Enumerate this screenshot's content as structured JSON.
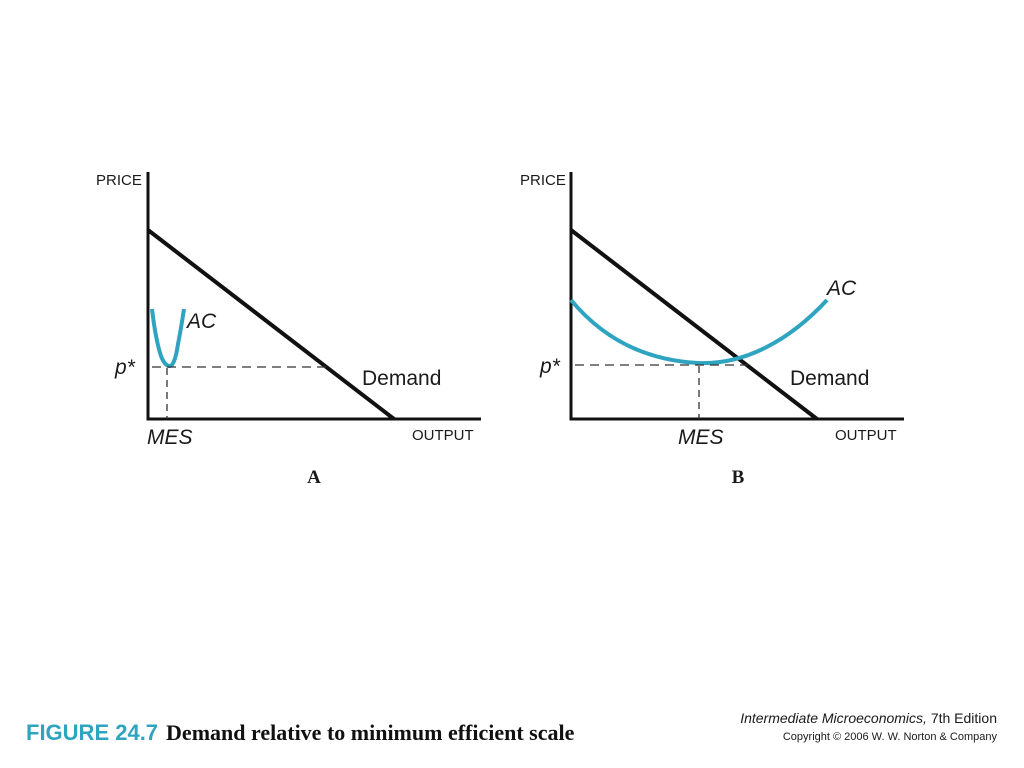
{
  "panels": [
    {
      "id": "A",
      "panel_label": "A",
      "y_axis_label": "PRICE",
      "x_axis_label": "OUTPUT",
      "demand_label": "Demand",
      "ac_label": "AC",
      "price_label": "p*",
      "quantity_label": "MES"
    },
    {
      "id": "B",
      "panel_label": "B",
      "y_axis_label": "PRICE",
      "x_axis_label": "OUTPUT",
      "demand_label": "Demand",
      "ac_label": "AC",
      "price_label": "p*",
      "quantity_label": "MES"
    }
  ],
  "caption": {
    "figure_number": "FIGURE 24.7",
    "title": "Demand relative to minimum efficient scale"
  },
  "source": {
    "book_title": "Intermediate Microeconomics,",
    "edition": " 7th Edition",
    "copyright": "Copyright © 2006 W. W. Norton & Company"
  },
  "colors": {
    "ac_curve": "#2fa4c1",
    "axes": "#111111",
    "demand": "#111111"
  }
}
